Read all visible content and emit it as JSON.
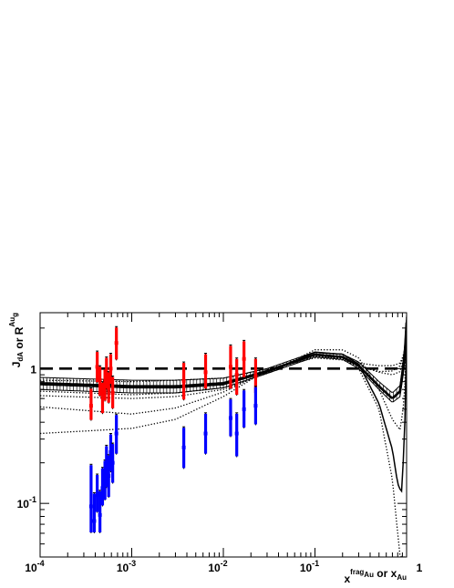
{
  "chart_data": {
    "type": "scatter",
    "x_scale": "log",
    "y_scale": "log",
    "xlim": [
      0.0001,
      1
    ],
    "ylim": [
      0.04,
      2.6
    ],
    "grid": false,
    "legend": "none",
    "xlabel": {
      "parts": [
        {
          "text": "x",
          "role": "base"
        },
        {
          "text": "frag",
          "role": "sup"
        },
        {
          "text": "Au",
          "role": "sub"
        },
        {
          "text": " or ",
          "role": "base"
        },
        {
          "text": "x",
          "role": "base"
        },
        {
          "text": "Au",
          "role": "sub"
        }
      ]
    },
    "ylabel": {
      "parts": [
        {
          "text": "J",
          "role": "base"
        },
        {
          "text": "dA",
          "role": "sub"
        },
        {
          "text": " or ",
          "role": "base"
        },
        {
          "text": "R",
          "role": "base"
        },
        {
          "text": "Au",
          "role": "sup"
        },
        {
          "text": "g",
          "role": "sub"
        }
      ]
    },
    "x_major_ticks": [
      {
        "value": 0.0001,
        "base": "10",
        "exp": "-4"
      },
      {
        "value": 0.001,
        "base": "10",
        "exp": "-3"
      },
      {
        "value": 0.01,
        "base": "10",
        "exp": "-2"
      },
      {
        "value": 0.1,
        "base": "10",
        "exp": "-1"
      },
      {
        "value": 1,
        "base": "1",
        "exp": ""
      }
    ],
    "y_major_ticks": [
      {
        "value": 0.1,
        "base": "10",
        "exp": "-1"
      },
      {
        "value": 1,
        "base": "1",
        "exp": ""
      }
    ],
    "reference_lines": [
      {
        "y": 1,
        "style": "dashed",
        "color": "#000000"
      }
    ],
    "series": [
      {
        "color": "#ff0000",
        "marker": "square",
        "points": [
          {
            "x": 0.00036,
            "y": 0.53,
            "lo": 0.41,
            "hi": 0.72
          },
          {
            "x": 0.00042,
            "y": 1.03,
            "lo": 0.78,
            "hi": 1.35
          },
          {
            "x": 0.00045,
            "y": 0.82,
            "lo": 0.62,
            "hi": 1.05
          },
          {
            "x": 0.00048,
            "y": 0.61,
            "lo": 0.46,
            "hi": 0.8
          },
          {
            "x": 0.00051,
            "y": 0.75,
            "lo": 0.57,
            "hi": 1.0
          },
          {
            "x": 0.00053,
            "y": 0.93,
            "lo": 0.7,
            "hi": 1.22
          },
          {
            "x": 0.00056,
            "y": 0.72,
            "lo": 0.55,
            "hi": 0.95
          },
          {
            "x": 0.00059,
            "y": 1.0,
            "lo": 0.76,
            "hi": 1.3
          },
          {
            "x": 0.00062,
            "y": 0.66,
            "lo": 0.5,
            "hi": 0.88
          },
          {
            "x": 0.00068,
            "y": 1.55,
            "lo": 1.15,
            "hi": 2.05
          },
          {
            "x": 0.0037,
            "y": 0.81,
            "lo": 0.58,
            "hi": 1.12
          },
          {
            "x": 0.0064,
            "y": 0.94,
            "lo": 0.7,
            "hi": 1.3
          },
          {
            "x": 0.012,
            "y": 1.03,
            "lo": 0.7,
            "hi": 1.5
          },
          {
            "x": 0.014,
            "y": 0.9,
            "lo": 0.63,
            "hi": 1.2
          },
          {
            "x": 0.0168,
            "y": 1.18,
            "lo": 0.85,
            "hi": 1.62
          },
          {
            "x": 0.0225,
            "y": 0.88,
            "lo": 0.65,
            "hi": 1.2
          }
        ]
      },
      {
        "color": "#0000ff",
        "marker": "square",
        "points": [
          {
            "x": 0.00036,
            "y": 0.095,
            "lo": 0.06,
            "hi": 0.195
          },
          {
            "x": 0.00039,
            "y": 0.074,
            "lo": 0.06,
            "hi": 0.12
          },
          {
            "x": 0.00042,
            "y": 0.115,
            "lo": 0.085,
            "hi": 0.165
          },
          {
            "x": 0.00045,
            "y": 0.082,
            "lo": 0.06,
            "hi": 0.125
          },
          {
            "x": 0.00048,
            "y": 0.13,
            "lo": 0.095,
            "hi": 0.185
          },
          {
            "x": 0.00051,
            "y": 0.15,
            "lo": 0.105,
            "hi": 0.21
          },
          {
            "x": 0.00053,
            "y": 0.19,
            "lo": 0.13,
            "hi": 0.27
          },
          {
            "x": 0.00056,
            "y": 0.16,
            "lo": 0.11,
            "hi": 0.23
          },
          {
            "x": 0.00059,
            "y": 0.24,
            "lo": 0.17,
            "hi": 0.33
          },
          {
            "x": 0.00062,
            "y": 0.2,
            "lo": 0.14,
            "hi": 0.28
          },
          {
            "x": 0.00068,
            "y": 0.33,
            "lo": 0.23,
            "hi": 0.46
          },
          {
            "x": 0.0037,
            "y": 0.26,
            "lo": 0.18,
            "hi": 0.37
          },
          {
            "x": 0.0064,
            "y": 0.33,
            "lo": 0.23,
            "hi": 0.47
          },
          {
            "x": 0.012,
            "y": 0.43,
            "lo": 0.31,
            "hi": 0.6
          },
          {
            "x": 0.014,
            "y": 0.33,
            "lo": 0.22,
            "hi": 0.47
          },
          {
            "x": 0.0168,
            "y": 0.5,
            "lo": 0.36,
            "hi": 0.7
          },
          {
            "x": 0.0225,
            "y": 0.53,
            "lo": 0.38,
            "hi": 0.74
          }
        ]
      }
    ],
    "curves": [
      {
        "style": "solid",
        "width": 2.6,
        "x": [
          0.0001,
          0.001,
          0.003,
          0.01,
          0.03,
          0.1,
          0.2,
          0.3,
          0.5,
          0.7,
          0.85,
          0.95,
          1.0
        ],
        "y": [
          0.78,
          0.74,
          0.74,
          0.78,
          0.96,
          1.27,
          1.22,
          1.05,
          0.74,
          0.6,
          0.68,
          1.2,
          2.2
        ]
      },
      {
        "style": "solid",
        "width": 1.5,
        "x": [
          0.0001,
          0.001,
          0.003,
          0.01,
          0.03,
          0.1,
          0.2,
          0.3,
          0.5,
          0.7,
          0.8,
          0.88,
          0.95,
          1.0
        ],
        "y": [
          0.76,
          0.72,
          0.72,
          0.76,
          0.94,
          1.32,
          1.28,
          1.08,
          0.55,
          0.25,
          0.14,
          0.12,
          0.3,
          1.9
        ]
      },
      {
        "style": "dotted",
        "width": 1.3,
        "x": [
          0.0001,
          0.001,
          0.003,
          0.01,
          0.03,
          0.1,
          0.2,
          0.3,
          0.5,
          0.7,
          0.85,
          0.95,
          1.0
        ],
        "y": [
          0.82,
          0.8,
          0.82,
          0.85,
          0.99,
          1.2,
          1.16,
          1.06,
          0.94,
          0.9,
          0.95,
          1.25,
          1.9
        ]
      },
      {
        "style": "dotted",
        "width": 1.3,
        "x": [
          0.0001,
          0.001,
          0.003,
          0.01,
          0.03,
          0.1,
          0.2,
          0.3,
          0.5,
          0.7,
          0.85,
          0.95,
          1.0
        ],
        "y": [
          0.68,
          0.64,
          0.66,
          0.72,
          0.92,
          1.38,
          1.38,
          1.2,
          0.7,
          0.42,
          0.35,
          0.6,
          2.4
        ]
      },
      {
        "style": "dotted",
        "width": 1.3,
        "x": [
          0.0001,
          0.001,
          0.003,
          0.01,
          0.03,
          0.1,
          0.2,
          0.3,
          0.5,
          0.7,
          0.8,
          0.85,
          0.92,
          1.0
        ],
        "y": [
          0.63,
          0.6,
          0.62,
          0.7,
          0.93,
          1.28,
          1.2,
          1.0,
          0.5,
          0.15,
          0.06,
          0.04,
          0.04,
          0.04
        ]
      },
      {
        "style": "dotted",
        "width": 1.3,
        "x": [
          0.0001,
          0.001,
          0.003,
          0.01,
          0.03,
          0.1,
          0.2,
          0.3,
          0.5,
          0.7,
          0.85,
          0.95,
          1.0
        ],
        "y": [
          0.52,
          0.46,
          0.51,
          0.67,
          0.96,
          1.23,
          1.2,
          1.06,
          0.95,
          0.96,
          1.05,
          1.35,
          1.8
        ]
      },
      {
        "style": "dotted",
        "width": 1.3,
        "x": [
          0.0001,
          0.001,
          0.003,
          0.01,
          0.03,
          0.1,
          0.2,
          0.3,
          0.5,
          0.7,
          0.85,
          0.95,
          1.0
        ],
        "y": [
          0.33,
          0.36,
          0.42,
          0.62,
          0.98,
          1.25,
          1.18,
          1.1,
          1.05,
          1.05,
          1.1,
          1.3,
          1.6
        ]
      }
    ],
    "band": {
      "color": "#000000",
      "x": [
        0.0001,
        0.001,
        0.003,
        0.01,
        0.03,
        0.1,
        0.2,
        0.3,
        0.5,
        0.7,
        0.85,
        0.95,
        1.0
      ],
      "lo": [
        0.7,
        0.66,
        0.66,
        0.72,
        0.92,
        1.22,
        1.17,
        1.0,
        0.7,
        0.56,
        0.62,
        1.05,
        1.9
      ],
      "hi": [
        0.86,
        0.82,
        0.82,
        0.85,
        1.0,
        1.33,
        1.28,
        1.12,
        0.8,
        0.66,
        0.75,
        1.4,
        2.5
      ]
    }
  }
}
